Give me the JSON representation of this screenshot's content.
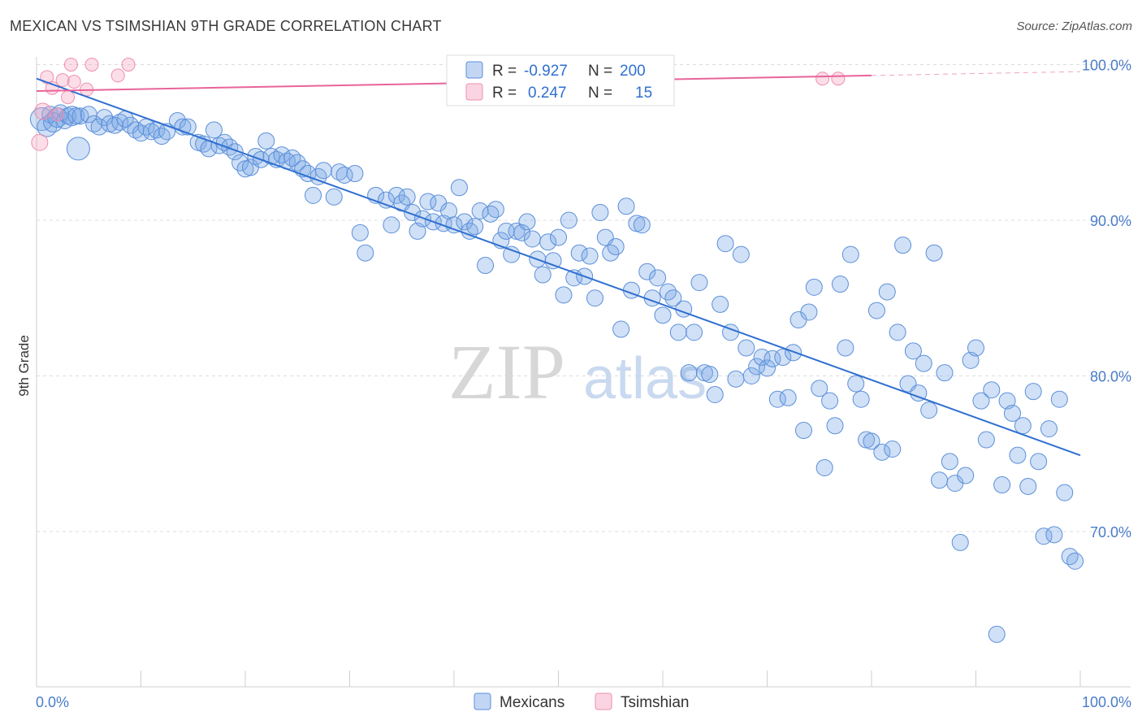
{
  "title": "MEXICAN VS TSIMSHIAN 9TH GRADE CORRELATION CHART",
  "source": "Source: ZipAtlas.com",
  "watermark": {
    "zip": "ZIP",
    "atlas": "atlas"
  },
  "colors": {
    "mexicans_fill": "rgba(120,165,230,0.35)",
    "mexicans_stroke": "#5b8fd9",
    "mexicans_line": "#2f6fd0",
    "tsimshian_fill": "rgba(245,160,190,0.35)",
    "tsimshian_stroke": "#ee8fb0",
    "tsimshian_line": "#e8649a",
    "grid": "#dcdcdc",
    "tick_label": "#4a7cc9"
  },
  "legend_box": {
    "row1": {
      "r_label": "R =",
      "r_value": "-0.927",
      "n_label": "N =",
      "n_value": "200"
    },
    "row2": {
      "r_label": "R =",
      "r_value": "0.247",
      "n_label": "N =",
      "n_value": "15"
    }
  },
  "bottom_legend": {
    "mexicans": "Mexicans",
    "tsimshian": "Tsimshian"
  },
  "chart_data": {
    "type": "scatter",
    "title": "MEXICAN VS TSIMSHIAN 9TH GRADE CORRELATION CHART",
    "xlabel": "",
    "ylabel": "9th Grade",
    "xlim": [
      0,
      100
    ],
    "ylim": [
      59,
      103
    ],
    "x_tick_labels": [
      "0.0%",
      "100.0%"
    ],
    "y_ticks": [
      70,
      80,
      90,
      100
    ],
    "y_tick_labels": [
      "70.0%",
      "80.0%",
      "90.0%",
      "100.0%"
    ],
    "grid": true,
    "legend_position": "top-center",
    "series": [
      {
        "name": "Mexicans",
        "r": -0.927,
        "n": 200,
        "trend": {
          "x": [
            0,
            100
          ],
          "y": [
            99.1,
            74.9
          ]
        },
        "points": [
          [
            0.5,
            96.5,
            14
          ],
          [
            1.0,
            96.0,
            12
          ],
          [
            1.3,
            96.8,
            10
          ],
          [
            1.6,
            96.3,
            12
          ],
          [
            2.0,
            96.6,
            12
          ],
          [
            2.3,
            96.9,
            10
          ],
          [
            2.7,
            96.4,
            10
          ],
          [
            3.0,
            96.7,
            10
          ],
          [
            3.4,
            96.7,
            12
          ],
          [
            3.8,
            96.7,
            10
          ],
          [
            4.0,
            94.6,
            14
          ],
          [
            4.2,
            96.7,
            10
          ],
          [
            5.0,
            96.8,
            10
          ],
          [
            5.5,
            96.2,
            10
          ],
          [
            6.0,
            96.0,
            10
          ],
          [
            6.5,
            96.6,
            10
          ],
          [
            7.0,
            96.2,
            10
          ],
          [
            7.5,
            96.1,
            10
          ],
          [
            8.0,
            96.3,
            10
          ],
          [
            8.5,
            96.5,
            10
          ],
          [
            9.0,
            96.1,
            10
          ],
          [
            9.5,
            95.8,
            10
          ],
          [
            10.0,
            95.6,
            10
          ],
          [
            10.5,
            96.0,
            10
          ],
          [
            11.0,
            95.7,
            10
          ],
          [
            11.5,
            95.8,
            10
          ],
          [
            12.0,
            95.4,
            10
          ],
          [
            12.5,
            95.7,
            10
          ],
          [
            13.5,
            96.4,
            10
          ],
          [
            14.0,
            96.0,
            10
          ],
          [
            14.5,
            96.0,
            10
          ],
          [
            15.5,
            95.0,
            10
          ],
          [
            16.0,
            94.9,
            10
          ],
          [
            16.5,
            94.6,
            10
          ],
          [
            17.0,
            95.8,
            10
          ],
          [
            17.5,
            94.8,
            10
          ],
          [
            18.0,
            95.0,
            10
          ],
          [
            18.5,
            94.7,
            10
          ],
          [
            19.0,
            94.4,
            10
          ],
          [
            19.5,
            93.7,
            10
          ],
          [
            20.0,
            93.3,
            10
          ],
          [
            20.5,
            93.4,
            10
          ],
          [
            21.0,
            94.1,
            10
          ],
          [
            21.5,
            93.9,
            10
          ],
          [
            22.0,
            95.1,
            10
          ],
          [
            22.5,
            94.1,
            10
          ],
          [
            23.0,
            93.9,
            10
          ],
          [
            23.5,
            94.2,
            10
          ],
          [
            24.0,
            93.8,
            10
          ],
          [
            24.5,
            94.0,
            10
          ],
          [
            25.0,
            93.7,
            10
          ],
          [
            25.5,
            93.3,
            10
          ],
          [
            26.0,
            93.0,
            10
          ],
          [
            26.5,
            91.6,
            10
          ],
          [
            27.0,
            92.8,
            10
          ],
          [
            27.5,
            93.2,
            10
          ],
          [
            28.5,
            91.5,
            10
          ],
          [
            29.0,
            93.1,
            10
          ],
          [
            29.5,
            92.9,
            10
          ],
          [
            30.5,
            93.0,
            10
          ],
          [
            31.0,
            89.2,
            10
          ],
          [
            31.5,
            87.9,
            10
          ],
          [
            32.5,
            91.6,
            10
          ],
          [
            33.5,
            91.3,
            10
          ],
          [
            34.0,
            89.7,
            10
          ],
          [
            34.5,
            91.6,
            10
          ],
          [
            35.0,
            91.1,
            10
          ],
          [
            35.5,
            91.5,
            10
          ],
          [
            36.0,
            90.5,
            10
          ],
          [
            36.5,
            89.3,
            10
          ],
          [
            37.0,
            90.1,
            10
          ],
          [
            37.5,
            91.2,
            10
          ],
          [
            38.0,
            89.9,
            10
          ],
          [
            38.5,
            91.1,
            10
          ],
          [
            39.0,
            89.8,
            10
          ],
          [
            39.5,
            90.6,
            10
          ],
          [
            40.0,
            89.7,
            10
          ],
          [
            40.5,
            92.1,
            10
          ],
          [
            41.0,
            89.9,
            10
          ],
          [
            41.5,
            89.3,
            10
          ],
          [
            42.0,
            89.6,
            10
          ],
          [
            42.5,
            90.6,
            10
          ],
          [
            43.0,
            87.1,
            10
          ],
          [
            43.5,
            90.4,
            10
          ],
          [
            44.0,
            90.7,
            10
          ],
          [
            44.5,
            88.7,
            10
          ],
          [
            45.0,
            89.3,
            10
          ],
          [
            45.5,
            87.8,
            10
          ],
          [
            46.0,
            89.3,
            10
          ],
          [
            46.5,
            89.2,
            10
          ],
          [
            47.0,
            89.9,
            10
          ],
          [
            47.5,
            88.8,
            10
          ],
          [
            48.0,
            87.5,
            10
          ],
          [
            48.5,
            86.5,
            10
          ],
          [
            49.0,
            88.6,
            10
          ],
          [
            49.5,
            87.4,
            10
          ],
          [
            50.0,
            88.9,
            10
          ],
          [
            50.5,
            85.2,
            10
          ],
          [
            51.0,
            90.0,
            10
          ],
          [
            51.5,
            86.3,
            10
          ],
          [
            52.0,
            87.9,
            10
          ],
          [
            52.5,
            86.4,
            10
          ],
          [
            53.0,
            87.7,
            10
          ],
          [
            53.5,
            85.0,
            10
          ],
          [
            54.0,
            90.5,
            10
          ],
          [
            54.5,
            88.9,
            10
          ],
          [
            55.0,
            87.9,
            10
          ],
          [
            55.5,
            88.3,
            10
          ],
          [
            56.0,
            83.0,
            10
          ],
          [
            56.5,
            90.9,
            10
          ],
          [
            57.0,
            85.5,
            10
          ],
          [
            57.5,
            89.8,
            10
          ],
          [
            58.0,
            89.7,
            10
          ],
          [
            58.5,
            86.7,
            10
          ],
          [
            59.0,
            85.0,
            10
          ],
          [
            59.5,
            86.3,
            10
          ],
          [
            60.0,
            83.9,
            10
          ],
          [
            60.5,
            85.4,
            10
          ],
          [
            61.0,
            85.0,
            10
          ],
          [
            61.5,
            82.8,
            10
          ],
          [
            62.0,
            84.3,
            10
          ],
          [
            62.5,
            80.2,
            10
          ],
          [
            63.0,
            82.8,
            10
          ],
          [
            63.5,
            86.0,
            10
          ],
          [
            64.0,
            80.2,
            10
          ],
          [
            64.5,
            80.1,
            10
          ],
          [
            65.0,
            78.8,
            10
          ],
          [
            65.5,
            84.6,
            10
          ],
          [
            66.0,
            88.5,
            10
          ],
          [
            66.5,
            82.8,
            10
          ],
          [
            67.0,
            79.8,
            10
          ],
          [
            67.5,
            87.8,
            10
          ],
          [
            68.0,
            81.8,
            10
          ],
          [
            68.5,
            80.0,
            10
          ],
          [
            69.0,
            80.6,
            10
          ],
          [
            69.5,
            81.2,
            10
          ],
          [
            70.0,
            80.5,
            10
          ],
          [
            70.5,
            81.1,
            10
          ],
          [
            71.0,
            78.5,
            10
          ],
          [
            71.5,
            81.2,
            10
          ],
          [
            72.0,
            78.6,
            10
          ],
          [
            72.5,
            81.5,
            10
          ],
          [
            73.0,
            83.6,
            10
          ],
          [
            73.5,
            76.5,
            10
          ],
          [
            74.0,
            84.1,
            10
          ],
          [
            74.5,
            85.7,
            10
          ],
          [
            75.0,
            79.2,
            10
          ],
          [
            75.5,
            74.1,
            10
          ],
          [
            76.0,
            78.4,
            10
          ],
          [
            76.5,
            76.8,
            10
          ],
          [
            77.0,
            85.9,
            10
          ],
          [
            77.5,
            81.8,
            10
          ],
          [
            78.0,
            87.8,
            10
          ],
          [
            78.5,
            79.5,
            10
          ],
          [
            79.0,
            78.5,
            10
          ],
          [
            79.5,
            75.9,
            10
          ],
          [
            80.0,
            75.8,
            10
          ],
          [
            80.5,
            84.2,
            10
          ],
          [
            81.0,
            75.1,
            10
          ],
          [
            81.5,
            85.4,
            10
          ],
          [
            82.0,
            75.3,
            10
          ],
          [
            82.5,
            82.8,
            10
          ],
          [
            83.0,
            88.4,
            10
          ],
          [
            83.5,
            79.5,
            10
          ],
          [
            84.0,
            81.6,
            10
          ],
          [
            84.5,
            78.9,
            10
          ],
          [
            85.0,
            80.8,
            10
          ],
          [
            85.5,
            77.8,
            10
          ],
          [
            86.0,
            87.9,
            10
          ],
          [
            86.5,
            73.3,
            10
          ],
          [
            87.0,
            80.2,
            10
          ],
          [
            87.5,
            74.5,
            10
          ],
          [
            88.0,
            73.1,
            10
          ],
          [
            88.5,
            69.3,
            10
          ],
          [
            89.0,
            73.6,
            10
          ],
          [
            89.5,
            81.0,
            10
          ],
          [
            90.0,
            81.8,
            10
          ],
          [
            90.5,
            78.4,
            10
          ],
          [
            91.0,
            75.9,
            10
          ],
          [
            91.5,
            79.1,
            10
          ],
          [
            92.0,
            63.4,
            10
          ],
          [
            92.5,
            73.0,
            10
          ],
          [
            93.0,
            78.4,
            10
          ],
          [
            93.5,
            77.6,
            10
          ],
          [
            94.0,
            74.9,
            10
          ],
          [
            94.5,
            76.8,
            10
          ],
          [
            95.0,
            72.9,
            10
          ],
          [
            95.5,
            79.0,
            10
          ],
          [
            96.0,
            74.5,
            10
          ],
          [
            96.5,
            69.7,
            10
          ],
          [
            97.0,
            76.6,
            10
          ],
          [
            97.5,
            69.8,
            10
          ],
          [
            98.0,
            78.5,
            10
          ],
          [
            98.5,
            72.5,
            10
          ],
          [
            99.0,
            68.4,
            10
          ],
          [
            99.5,
            68.1,
            10
          ]
        ]
      },
      {
        "name": "Tsimshian",
        "r": 0.247,
        "n": 15,
        "trend": {
          "x": [
            0,
            80
          ],
          "y": [
            98.3,
            99.3
          ]
        },
        "trend_dashed": {
          "x": [
            80,
            100
          ],
          "y": [
            99.3,
            99.55
          ]
        },
        "points": [
          [
            0.3,
            95.0,
            10
          ],
          [
            0.6,
            97.0,
            10
          ],
          [
            1.0,
            99.2,
            8
          ],
          [
            1.5,
            98.5,
            8
          ],
          [
            2.5,
            99.0,
            8
          ],
          [
            3.0,
            97.9,
            8
          ],
          [
            3.3,
            100.0,
            8
          ],
          [
            3.6,
            98.9,
            8
          ],
          [
            5.3,
            100.0,
            8
          ],
          [
            4.8,
            98.4,
            8
          ],
          [
            7.8,
            99.3,
            8
          ],
          [
            8.8,
            100.0,
            8
          ],
          [
            75.3,
            99.1,
            8
          ],
          [
            76.8,
            99.1,
            8
          ],
          [
            2.0,
            96.8,
            8
          ]
        ]
      }
    ]
  }
}
